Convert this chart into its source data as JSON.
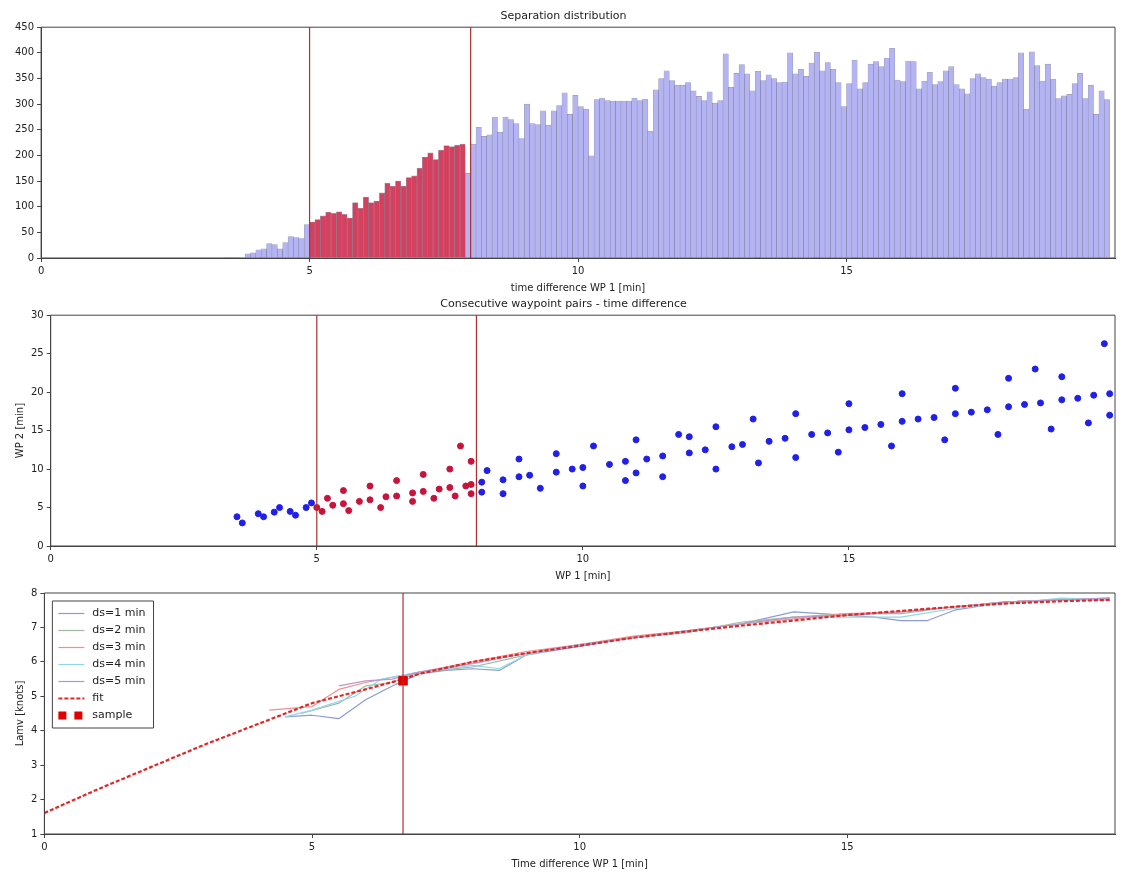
{
  "chart_data": [
    {
      "type": "histogram",
      "title": "Separation distribution",
      "xlabel": "time difference WP 1 [min]",
      "bins": [
        3.4,
        3.5,
        3.6,
        3.7,
        3.8,
        3.9,
        4.0,
        4.1,
        4.2,
        4.3,
        4.4,
        4.5,
        4.6,
        4.7,
        4.8,
        4.9,
        5.0,
        5.1,
        5.2,
        5.3,
        5.4,
        5.5,
        5.6,
        5.7,
        5.8,
        5.9,
        6.0,
        6.1,
        6.2,
        6.3,
        6.4,
        6.5,
        6.6,
        6.7,
        6.8,
        6.9,
        7.0,
        7.1,
        7.2,
        7.3,
        7.4,
        7.5,
        7.6,
        7.7,
        7.8,
        7.9,
        8.0,
        8.1,
        8.2,
        8.3,
        8.4,
        8.5,
        8.6,
        8.7,
        8.8,
        8.9,
        9.0,
        9.1,
        9.2,
        9.3,
        9.4,
        9.5,
        9.6,
        9.7,
        9.8,
        9.9,
        10.0,
        10.1,
        10.2,
        10.3,
        10.4,
        10.5,
        10.6,
        10.7,
        10.8,
        10.9,
        11.0,
        11.1,
        11.2,
        11.3,
        11.4,
        11.5,
        11.6,
        11.7,
        11.8,
        11.9,
        12.0,
        12.1,
        12.2,
        12.3,
        12.4,
        12.5,
        12.6,
        12.7,
        12.8,
        12.9,
        13.0,
        13.1,
        13.2,
        13.3,
        13.4,
        13.5,
        13.6,
        13.7,
        13.8,
        13.9,
        14.0,
        14.1,
        14.2,
        14.3,
        14.4,
        14.5,
        14.6,
        14.7,
        14.8,
        14.9,
        15.0,
        15.1,
        15.2,
        15.3,
        15.4,
        15.5,
        15.6,
        15.7,
        15.8,
        15.9,
        16.0,
        16.1,
        16.2,
        16.3,
        16.4,
        16.5,
        16.6,
        16.7,
        16.8,
        16.9,
        17.0,
        17.1,
        17.2,
        17.3,
        17.4,
        17.5,
        17.6,
        17.7,
        17.8,
        17.9,
        18.0,
        18.1,
        18.2,
        18.3,
        18.4,
        18.5,
        18.6,
        18.7,
        18.8,
        18.9,
        19.0,
        19.1,
        19.2,
        19.3,
        19.4,
        19.5,
        19.6,
        19.7,
        19.8,
        19.9
      ],
      "values": [
        1,
        1,
        1,
        0,
        8,
        10,
        16,
        18,
        28,
        26,
        18,
        30,
        42,
        40,
        38,
        65,
        70,
        75,
        82,
        89,
        87,
        90,
        85,
        78,
        108,
        97,
        119,
        108,
        111,
        127,
        146,
        140,
        150,
        140,
        157,
        160,
        175,
        197,
        205,
        192,
        210,
        219,
        217,
        220,
        222,
        165,
        222,
        255,
        237,
        240,
        275,
        245,
        275,
        270,
        262,
        233,
        300,
        262,
        260,
        287,
        259,
        287,
        297,
        322,
        280,
        317,
        295,
        290,
        199,
        309,
        312,
        307,
        306,
        306,
        306,
        306,
        312,
        307,
        310,
        247,
        328,
        350,
        365,
        346,
        337,
        337,
        342,
        326,
        315,
        307,
        324,
        302,
        307,
        398,
        333,
        360,
        377,
        359,
        326,
        364,
        346,
        357,
        350,
        342,
        343,
        400,
        359,
        368,
        354,
        380,
        401,
        365,
        381,
        368,
        342,
        295,
        340,
        386,
        330,
        342,
        378,
        383,
        373,
        390,
        409,
        347,
        344,
        384,
        383,
        330,
        345,
        362,
        338,
        344,
        365,
        373,
        338,
        330,
        320,
        350,
        359,
        352,
        349,
        335,
        342,
        349,
        349,
        352,
        400,
        290,
        402,
        375,
        345,
        378,
        349,
        311,
        316,
        319,
        340,
        360,
        311,
        337,
        280,
        326,
        309
      ],
      "colors": [
        "#b4b4f4",
        "#b4b4f4",
        "#b4b4f4",
        "#b4b4f4",
        "#b4b4f4",
        "#b4b4f4",
        "#b4b4f4",
        "#b4b4f4",
        "#b4b4f4",
        "#b4b4f4",
        "#b4b4f4",
        "#b4b4f4",
        "#b4b4f4",
        "#b4b4f4",
        "#b4b4f4",
        "#b4b4f4",
        "#d4405e",
        "#d4405e",
        "#d4405e",
        "#d4405e",
        "#d4405e",
        "#d4405e",
        "#d4405e",
        "#d4405e",
        "#d4405e",
        "#d4405e",
        "#d4405e",
        "#d4405e",
        "#d4405e",
        "#d4405e",
        "#d4405e",
        "#d4405e",
        "#d4405e",
        "#d4405e",
        "#d4405e",
        "#d4405e",
        "#d4405e",
        "#d4405e",
        "#d4405e",
        "#d4405e",
        "#d4405e",
        "#d4405e",
        "#d4405e",
        "#d4405e",
        "#d4405e",
        "#b4b4f4",
        "#b4b4f4",
        "#b4b4f4",
        "#b4b4f4",
        "#b4b4f4",
        "#b4b4f4",
        "#b4b4f4",
        "#b4b4f4",
        "#b4b4f4",
        "#b4b4f4",
        "#b4b4f4",
        "#b4b4f4",
        "#b4b4f4",
        "#b4b4f4",
        "#b4b4f4",
        "#b4b4f4",
        "#b4b4f4",
        "#b4b4f4",
        "#b4b4f4",
        "#b4b4f4",
        "#b4b4f4",
        "#b4b4f4",
        "#b4b4f4",
        "#b4b4f4",
        "#b4b4f4",
        "#b4b4f4",
        "#b4b4f4",
        "#b4b4f4",
        "#b4b4f4",
        "#b4b4f4",
        "#b4b4f4",
        "#b4b4f4",
        "#b4b4f4",
        "#b4b4f4",
        "#b4b4f4",
        "#b4b4f4",
        "#b4b4f4",
        "#b4b4f4",
        "#b4b4f4",
        "#b4b4f4",
        "#b4b4f4",
        "#b4b4f4",
        "#b4b4f4",
        "#b4b4f4",
        "#b4b4f4",
        "#b4b4f4",
        "#b4b4f4",
        "#b4b4f4",
        "#b4b4f4",
        "#b4b4f4",
        "#b4b4f4",
        "#b4b4f4",
        "#b4b4f4",
        "#b4b4f4",
        "#b4b4f4",
        "#b4b4f4",
        "#b4b4f4",
        "#b4b4f4",
        "#b4b4f4",
        "#b4b4f4",
        "#b4b4f4",
        "#b4b4f4",
        "#b4b4f4",
        "#b4b4f4",
        "#b4b4f4",
        "#b4b4f4",
        "#b4b4f4",
        "#b4b4f4",
        "#b4b4f4",
        "#b4b4f4",
        "#b4b4f4",
        "#b4b4f4",
        "#b4b4f4",
        "#b4b4f4",
        "#b4b4f4",
        "#b4b4f4",
        "#b4b4f4",
        "#b4b4f4",
        "#b4b4f4",
        "#b4b4f4",
        "#b4b4f4",
        "#b4b4f4",
        "#b4b4f4",
        "#b4b4f4",
        "#b4b4f4",
        "#b4b4f4",
        "#b4b4f4",
        "#b4b4f4",
        "#b4b4f4",
        "#b4b4f4",
        "#b4b4f4",
        "#b4b4f4",
        "#b4b4f4",
        "#b4b4f4",
        "#b4b4f4",
        "#b4b4f4",
        "#b4b4f4",
        "#b4b4f4",
        "#b4b4f4",
        "#b4b4f4",
        "#b4b4f4",
        "#b4b4f4",
        "#b4b4f4",
        "#b4b4f4",
        "#b4b4f4",
        "#b4b4f4",
        "#b4b4f4",
        "#b4b4f4",
        "#b4b4f4",
        "#b4b4f4",
        "#b4b4f4",
        "#b4b4f4",
        "#b4b4f4",
        "#b4b4f4",
        "#b4b4f4",
        "#b4b4f4",
        "#b4b4f4",
        "#b4b4f4",
        "#b4b4f4",
        "#b4b4f4"
      ],
      "xlim": [
        0,
        20
      ],
      "xticks": [
        0,
        5,
        10,
        15
      ],
      "ylim": [
        0,
        450
      ],
      "yticks": [
        0,
        50,
        100,
        150,
        200,
        250,
        300,
        350,
        400,
        450
      ],
      "grid": false,
      "ref_lines": [
        {
          "axis": "x",
          "value": 5,
          "color": "#b03030"
        },
        {
          "axis": "x",
          "value": 8,
          "color": "#b03030"
        }
      ]
    },
    {
      "type": "scatter",
      "title": "Consecutive waypoint pairs - time difference",
      "xlabel": "WP 1 [min]",
      "ylabel": "WP 2 [min]",
      "marker": "circle",
      "series": [
        {
          "color": "#2020e8",
          "x": [
            3.5,
            3.6,
            3.9,
            4.0,
            4.2,
            4.3,
            4.5,
            4.6,
            4.8,
            4.9,
            8.1,
            8.1,
            8.2,
            8.5,
            8.5,
            8.8,
            8.8,
            9.0,
            9.2,
            9.5,
            9.5,
            9.8,
            10.0,
            10.0,
            10.2,
            10.5,
            10.8,
            10.8,
            11.0,
            11.0,
            11.2,
            11.5,
            11.5,
            11.8,
            12.0,
            12.0,
            12.3,
            12.5,
            12.5,
            12.8,
            13.0,
            13.2,
            13.3,
            13.5,
            13.8,
            14.0,
            14.0,
            14.3,
            14.6,
            14.8,
            15.0,
            15.0,
            15.3,
            15.6,
            15.8,
            16.0,
            16.0,
            16.3,
            16.6,
            16.8,
            17.0,
            17.0,
            17.3,
            17.6,
            17.8,
            18.0,
            18.0,
            18.3,
            18.5,
            18.6,
            18.8,
            19.0,
            19.0,
            19.3,
            19.5,
            19.6,
            19.8,
            19.9,
            19.9
          ],
          "values": [
            3.8,
            3.0,
            4.2,
            3.8,
            4.4,
            5.0,
            4.5,
            4.0,
            5.0,
            5.6,
            8.3,
            7.0,
            9.8,
            8.6,
            6.8,
            9.0,
            11.3,
            9.2,
            7.5,
            9.6,
            12.0,
            10.0,
            10.2,
            7.8,
            13.0,
            10.6,
            11.0,
            8.5,
            13.8,
            9.5,
            11.3,
            11.7,
            9.0,
            14.5,
            12.1,
            14.2,
            12.5,
            10.0,
            15.5,
            12.9,
            13.2,
            16.5,
            10.8,
            13.6,
            14.0,
            11.5,
            17.2,
            14.5,
            14.7,
            12.2,
            15.1,
            18.5,
            15.4,
            15.8,
            13.0,
            16.2,
            19.8,
            16.5,
            16.7,
            13.8,
            17.2,
            20.5,
            17.4,
            17.7,
            14.5,
            18.1,
            21.8,
            18.4,
            23.0,
            18.6,
            15.2,
            19.0,
            22.0,
            19.2,
            16.0,
            19.6,
            26.3,
            19.8,
            17.0
          ]
        },
        {
          "color": "#c8143c",
          "x": [
            5.0,
            5.1,
            5.2,
            5.3,
            5.5,
            5.5,
            5.6,
            5.8,
            6.0,
            6.0,
            6.2,
            6.3,
            6.5,
            6.5,
            6.8,
            6.8,
            7.0,
            7.0,
            7.2,
            7.3,
            7.5,
            7.5,
            7.6,
            7.7,
            7.8,
            7.9,
            7.9,
            7.9
          ],
          "values": [
            5.0,
            4.5,
            6.2,
            5.3,
            5.5,
            7.2,
            4.6,
            5.8,
            6.0,
            7.8,
            5.0,
            6.4,
            6.5,
            8.5,
            5.8,
            6.9,
            7.1,
            9.3,
            6.2,
            7.4,
            7.6,
            10.0,
            6.5,
            13.0,
            7.8,
            8.0,
            11.0,
            6.8
          ]
        }
      ],
      "xlim": [
        0,
        20
      ],
      "xticks": [
        0,
        5,
        10,
        15
      ],
      "ylim": [
        0,
        30
      ],
      "yticks": [
        0,
        5,
        10,
        15,
        20,
        25,
        30
      ],
      "grid": false,
      "ref_lines": [
        {
          "axis": "x",
          "value": 5,
          "color": "#b03030"
        },
        {
          "axis": "x",
          "value": 8,
          "color": "#b03030"
        }
      ]
    },
    {
      "type": "line",
      "xlabel": "Time difference WP 1 [min]",
      "ylabel": "Lamv [knots]",
      "marker": "none",
      "legend": "top left",
      "series": [
        {
          "name": "ds=1 min",
          "color": "#8c9cd0",
          "x": [
            4.5,
            5,
            5.5,
            6,
            6.5,
            7,
            7.5,
            8,
            8.5,
            9,
            10,
            11,
            12,
            13,
            14,
            15,
            15.5,
            16,
            16.5,
            17,
            18,
            19,
            19.9
          ],
          "values": [
            4.4,
            4.45,
            4.35,
            4.9,
            5.3,
            5.65,
            5.75,
            5.8,
            5.75,
            6.2,
            6.45,
            6.7,
            6.9,
            7.1,
            7.45,
            7.35,
            7.3,
            7.2,
            7.2,
            7.5,
            7.75,
            7.8,
            7.8
          ]
        },
        {
          "name": "ds=2 min",
          "color": "#a0b8a0",
          "x": [
            4.8,
            5.5,
            6,
            6.5,
            7,
            8,
            9,
            10,
            11,
            12,
            13,
            14,
            15,
            16,
            17,
            18,
            19,
            19.9
          ],
          "values": [
            4.5,
            4.8,
            5.3,
            5.4,
            5.7,
            5.85,
            6.2,
            6.5,
            6.7,
            6.85,
            7.15,
            7.3,
            7.4,
            7.4,
            7.6,
            7.7,
            7.8,
            7.85
          ]
        },
        {
          "name": "ds=3 min",
          "color": "#f09090",
          "x": [
            4.2,
            5,
            5.5,
            6,
            7,
            8,
            9,
            10,
            11,
            12,
            13,
            14,
            15,
            16,
            17,
            18,
            19,
            19.9
          ],
          "values": [
            4.6,
            4.7,
            5.2,
            5.4,
            5.7,
            6.0,
            6.3,
            6.5,
            6.75,
            6.9,
            7.1,
            7.25,
            7.4,
            7.45,
            7.6,
            7.75,
            7.8,
            7.85
          ]
        },
        {
          "name": "ds=4 min",
          "color": "#90d8e8",
          "x": [
            4.5,
            5,
            5.8,
            6.3,
            7,
            8,
            8.5,
            9,
            10,
            11,
            12,
            13,
            14,
            15,
            16,
            17,
            18,
            19,
            19.9
          ],
          "values": [
            4.4,
            4.6,
            5.0,
            5.5,
            5.7,
            5.9,
            5.8,
            6.2,
            6.5,
            6.7,
            6.9,
            7.1,
            7.3,
            7.3,
            7.3,
            7.55,
            7.7,
            7.85,
            7.8
          ]
        },
        {
          "name": "ds=5 min",
          "color": "#b898c8",
          "x": [
            5.5,
            6,
            6.5,
            7,
            8,
            9,
            10,
            11,
            12,
            13,
            14,
            15,
            16,
            17,
            18,
            19,
            19.9
          ],
          "values": [
            5.3,
            5.45,
            5.5,
            5.7,
            5.95,
            6.25,
            6.5,
            6.7,
            6.9,
            7.1,
            7.3,
            7.35,
            7.45,
            7.6,
            7.75,
            7.8,
            7.85
          ]
        },
        {
          "name": "fit",
          "color": "#e02828",
          "line_style": "dashed",
          "x": [
            0,
            1,
            2,
            3,
            4,
            5,
            6,
            6.7,
            7,
            8,
            9,
            10,
            11,
            12,
            13,
            14,
            15,
            16,
            17,
            18,
            19,
            19.9
          ],
          "values": [
            1.61,
            2.3,
            2.95,
            3.6,
            4.2,
            4.8,
            5.2,
            5.5,
            5.65,
            6.0,
            6.25,
            6.47,
            6.7,
            6.88,
            7.05,
            7.2,
            7.36,
            7.48,
            7.6,
            7.7,
            7.76,
            7.8
          ]
        },
        {
          "name": "sample",
          "type": "scatter",
          "marker": "square",
          "color": "#e00000",
          "x": [
            6.7
          ],
          "values": [
            5.45
          ]
        }
      ],
      "xlim": [
        0,
        20
      ],
      "xticks": [
        0,
        5,
        10,
        15
      ],
      "ylim": [
        1,
        8
      ],
      "yticks": [
        1,
        2,
        3,
        4,
        5,
        6,
        7,
        8
      ],
      "grid": false,
      "ref_lines": [
        {
          "axis": "x",
          "value": 6.7,
          "color": "#b03030"
        }
      ]
    }
  ]
}
